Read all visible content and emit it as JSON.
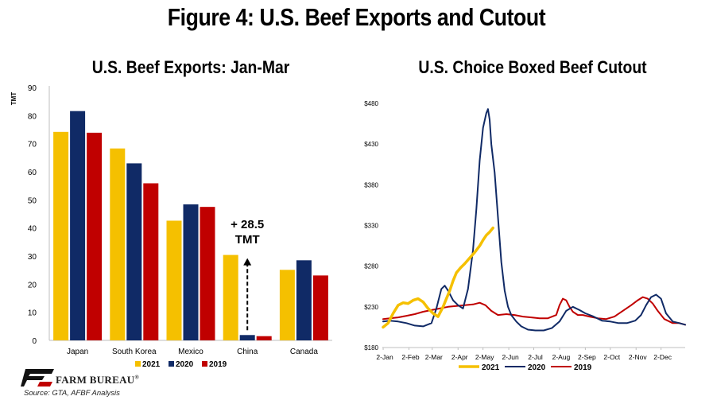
{
  "title": "Figure 4: U.S. Beef Exports and Cutout",
  "logo_text": "FARM BUREAU",
  "logo_mark": "®",
  "source": "Source:  GTA, AFBF Analysis",
  "colors": {
    "y2021": "#F5C000",
    "y2020": "#102A66",
    "y2019": "#C00000"
  },
  "chart_data": [
    {
      "type": "bar",
      "title": "U.S. Beef Exports: Jan-Mar",
      "ylabel": "TMT",
      "ylim": [
        0,
        90
      ],
      "yticks": [
        0,
        10,
        20,
        30,
        40,
        50,
        60,
        70,
        80,
        90
      ],
      "categories": [
        "Japan",
        "South Korea",
        "Mexico",
        "China",
        "Canada"
      ],
      "series": [
        {
          "name": "2021",
          "color": "#F5C000",
          "values": [
            74.2,
            68.3,
            42.6,
            30.4,
            25.1
          ]
        },
        {
          "name": "2020",
          "color": "#102A66",
          "values": [
            81.6,
            63.0,
            48.4,
            1.9,
            28.5
          ]
        },
        {
          "name": "2019",
          "color": "#C00000",
          "values": [
            73.9,
            55.9,
            47.5,
            1.5,
            23.1
          ]
        }
      ],
      "annotation": {
        "line1": "+ 28.5",
        "line2": "TMT"
      },
      "legend_position": "bottom"
    },
    {
      "type": "line",
      "title": "U.S. Choice Boxed Beef Cutout",
      "ylim": [
        180,
        480
      ],
      "yticks": [
        "$180",
        "$230",
        "$280",
        "$330",
        "$380",
        "$430",
        "$480"
      ],
      "xlim": [
        1,
        365
      ],
      "x_tick_labels": [
        "2-Jan",
        "2-Feb",
        "2-Mar",
        "2-Apr",
        "2-May",
        "2-Jun",
        "2-Jul",
        "2-Aug",
        "2-Sep",
        "2-Oct",
        "2-Nov",
        "2-Dec"
      ],
      "x_tick_days": [
        2,
        33,
        61,
        92,
        122,
        153,
        183,
        214,
        245,
        275,
        306,
        336
      ],
      "legend_position": "bottom",
      "series": [
        {
          "name": "2021",
          "color": "#F5C000",
          "x": [
            2,
            8,
            14,
            20,
            26,
            32,
            38,
            44,
            50,
            56,
            62,
            68,
            74,
            78,
            82,
            86,
            90,
            95,
            100,
            106,
            112,
            118,
            122,
            126,
            130,
            134
          ],
          "y": [
            205,
            210,
            222,
            232,
            235,
            234,
            238,
            240,
            236,
            228,
            222,
            218,
            230,
            240,
            250,
            262,
            272,
            278,
            283,
            290,
            297,
            305,
            312,
            318,
            322,
            327
          ]
        },
        {
          "name": "2020",
          "color": "#102A66",
          "x": [
            2,
            10,
            20,
            30,
            40,
            50,
            60,
            66,
            72,
            76,
            80,
            86,
            92,
            98,
            104,
            110,
            114,
            118,
            122,
            126,
            128,
            130,
            132,
            136,
            140,
            144,
            148,
            152,
            156,
            162,
            168,
            176,
            185,
            195,
            205,
            214,
            222,
            230,
            238,
            245,
            255,
            265,
            275,
            285,
            295,
            305,
            312,
            318,
            324,
            330,
            336,
            342,
            350,
            358,
            365
          ],
          "y": [
            212,
            213,
            212,
            210,
            207,
            206,
            210,
            228,
            252,
            256,
            250,
            238,
            232,
            228,
            252,
            300,
            350,
            410,
            450,
            468,
            473,
            460,
            430,
            395,
            340,
            285,
            250,
            230,
            220,
            212,
            206,
            202,
            201,
            201,
            204,
            212,
            225,
            230,
            226,
            222,
            218,
            213,
            212,
            210,
            210,
            213,
            220,
            232,
            242,
            245,
            240,
            222,
            212,
            210,
            208
          ]
        },
        {
          "name": "2019",
          "color": "#C00000",
          "x": [
            2,
            10,
            20,
            30,
            40,
            50,
            60,
            70,
            80,
            90,
            100,
            110,
            118,
            125,
            132,
            140,
            150,
            160,
            170,
            180,
            190,
            200,
            210,
            214,
            218,
            222,
            226,
            230,
            236,
            242,
            250,
            260,
            270,
            280,
            290,
            300,
            308,
            314,
            320,
            326,
            332,
            340,
            350,
            358,
            365
          ],
          "y": [
            215,
            216,
            217,
            219,
            221,
            224,
            226,
            228,
            230,
            231,
            232,
            233,
            235,
            232,
            225,
            220,
            221,
            220,
            218,
            217,
            216,
            216,
            220,
            232,
            240,
            238,
            230,
            224,
            220,
            220,
            218,
            216,
            215,
            218,
            225,
            232,
            238,
            242,
            240,
            234,
            225,
            215,
            210,
            210,
            208
          ]
        }
      ]
    }
  ]
}
